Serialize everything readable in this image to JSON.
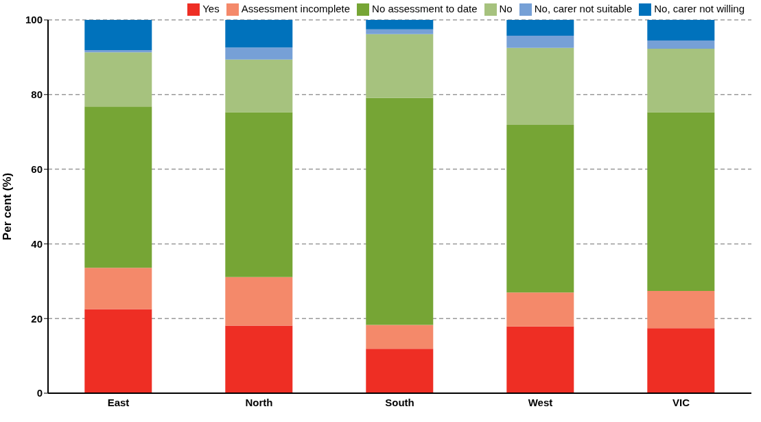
{
  "chart_data": {
    "type": "bar",
    "stacked": true,
    "ylabel": "Per cent (%)",
    "categories": [
      "East",
      "North",
      "South",
      "West",
      "VIC"
    ],
    "series": [
      {
        "name": "Yes",
        "color": "#ee2e24",
        "values": [
          22.5,
          18.1,
          11.9,
          17.9,
          17.4
        ]
      },
      {
        "name": "Assessment incomplete",
        "color": "#f4896a",
        "values": [
          11.1,
          13.0,
          6.4,
          9.1,
          10.0
        ]
      },
      {
        "name": "No assessment to date",
        "color": "#76a535",
        "values": [
          43.2,
          44.2,
          60.8,
          44.9,
          47.9
        ]
      },
      {
        "name": "No",
        "color": "#a6c27e",
        "values": [
          14.5,
          14.1,
          17.1,
          20.6,
          17.0
        ]
      },
      {
        "name": "No, carer not suitable",
        "color": "#76a0d6",
        "values": [
          0.6,
          3.2,
          1.3,
          3.3,
          2.2
        ]
      },
      {
        "name": "No, carer not willing",
        "color": "#0072bc",
        "values": [
          8.1,
          7.4,
          2.5,
          4.2,
          5.5
        ]
      }
    ],
    "ylim": [
      0,
      100
    ],
    "yticks": [
      0,
      20,
      40,
      60,
      80,
      100
    ],
    "grid": "y",
    "legend": "top"
  }
}
